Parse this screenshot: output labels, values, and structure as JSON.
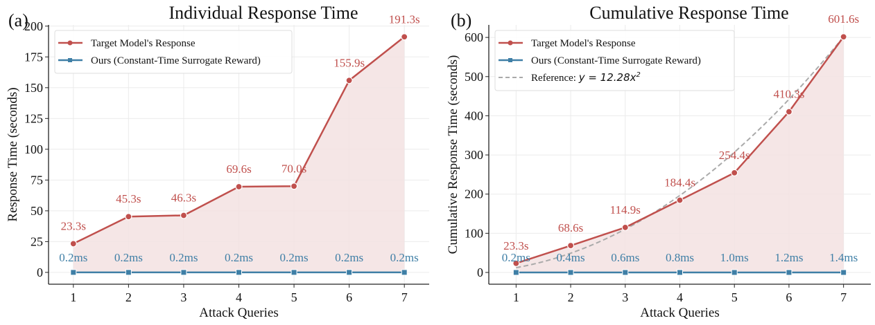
{
  "colors": {
    "target": "#c0504d",
    "ours": "#3f7fa6",
    "reference": "#aaaaaa",
    "fill": "#f3e2e2",
    "grid": "#ebebeb"
  },
  "chart_data": [
    {
      "type": "line",
      "panel_label": "(a)",
      "title": "Individual Response Time",
      "xlabel": "Attack Queries",
      "ylabel": "Response Time (seconds)",
      "x": [
        1,
        2,
        3,
        4,
        5,
        6,
        7
      ],
      "xlim": [
        0.55,
        7.45
      ],
      "ylim": [
        -9.6,
        201
      ],
      "xticks": [
        1,
        2,
        3,
        4,
        5,
        6,
        7
      ],
      "yticks": [
        0,
        25,
        50,
        75,
        100,
        125,
        150,
        175,
        200
      ],
      "grid": true,
      "legend_placement": "top-left",
      "series": [
        {
          "name": "Target Model's Response",
          "values": [
            23.3,
            45.3,
            46.3,
            69.6,
            70.0,
            155.9,
            191.3
          ],
          "labels": [
            "23.3s",
            "45.3s",
            "46.3s",
            "69.6s",
            "70.0s",
            "155.9s",
            "191.3s"
          ],
          "marker": "circle",
          "filled_area": true
        },
        {
          "name": "Ours (Constant-Time Surrogate Reward)",
          "values": [
            0.0002,
            0.0002,
            0.0002,
            0.0002,
            0.0002,
            0.0002,
            0.0002
          ],
          "labels": [
            "0.2ms",
            "0.2ms",
            "0.2ms",
            "0.2ms",
            "0.2ms",
            "0.2ms",
            "0.2ms"
          ],
          "marker": "square"
        }
      ]
    },
    {
      "type": "line",
      "panel_label": "(b)",
      "title": "Cumulative Response Time",
      "xlabel": "Attack Queries",
      "ylabel": "Cumulative Response Time (seconds)",
      "x": [
        1,
        2,
        3,
        4,
        5,
        6,
        7
      ],
      "xlim": [
        0.5,
        7.5
      ],
      "ylim": [
        -30,
        632
      ],
      "xticks": [
        1,
        2,
        3,
        4,
        5,
        6,
        7
      ],
      "yticks": [
        0,
        100,
        200,
        300,
        400,
        500,
        600
      ],
      "grid": true,
      "legend_placement": "top-left",
      "series": [
        {
          "name": "Target Model's Response",
          "values": [
            23.3,
            68.6,
            114.9,
            184.4,
            254.4,
            410.3,
            601.6
          ],
          "labels": [
            "23.3s",
            "68.6s",
            "114.9s",
            "184.4s",
            "254.4s",
            "410.3s",
            "601.6s"
          ],
          "marker": "circle",
          "filled_area": true
        },
        {
          "name": "Ours (Constant-Time Surrogate Reward)",
          "values": [
            0.0002,
            0.0004,
            0.0006,
            0.0008,
            0.001,
            0.0012,
            0.0014
          ],
          "labels": [
            "0.2ms",
            "0.4ms",
            "0.6ms",
            "0.8ms",
            "1.0ms",
            "1.2ms",
            "1.4ms"
          ],
          "marker": "square"
        }
      ],
      "reference": {
        "name_prefix": "Reference: ",
        "name_math": "y = 12.28x",
        "name_exp": "2",
        "coefficient": 12.28,
        "exponent": 2,
        "style": "dashed"
      }
    }
  ]
}
